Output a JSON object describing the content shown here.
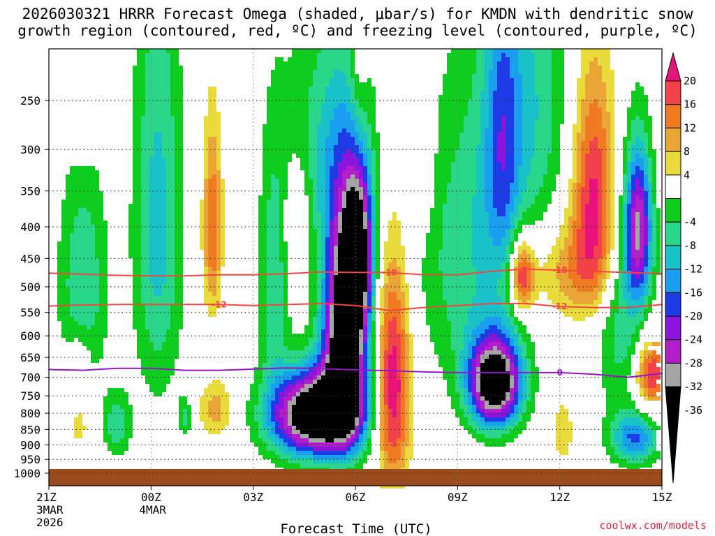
{
  "title": {
    "line1": "2026030321 HRRR Forecast Omega (shaded, μbar/s) for KMDN with dendritic snow",
    "line2": "growth region (contoured, red, ºC) and freezing level (contoured, purple, ºC)"
  },
  "credit": "coolwx.com/models",
  "chart_data": {
    "type": "heatmap",
    "xlabel": "Forecast Time (UTC)",
    "ylabel": "",
    "xlim": [
      0,
      18
    ],
    "ylim": [
      1000,
      200
    ],
    "x_ticks": [
      {
        "x": 0,
        "lines": [
          "21Z",
          "3MAR",
          "2026"
        ]
      },
      {
        "x": 3,
        "lines": [
          "00Z",
          "4MAR"
        ]
      },
      {
        "x": 6,
        "lines": [
          "03Z"
        ]
      },
      {
        "x": 9,
        "lines": [
          "06Z"
        ]
      },
      {
        "x": 12,
        "lines": [
          "09Z"
        ]
      },
      {
        "x": 15,
        "lines": [
          "12Z"
        ]
      },
      {
        "x": 18,
        "lines": [
          "15Z"
        ]
      }
    ],
    "y_ticks": [
      250,
      300,
      350,
      400,
      450,
      500,
      550,
      600,
      650,
      700,
      750,
      800,
      850,
      900,
      950,
      1000
    ],
    "colorbar": {
      "labels": [
        20,
        16,
        12,
        8,
        4,
        -4,
        -8,
        -12,
        -16,
        -20,
        -24,
        -28,
        -32,
        -36
      ],
      "levels": [
        {
          "from": 20,
          "to": 24,
          "color": "#e8137a"
        },
        {
          "from": 16,
          "to": 20,
          "color": "#f3434a"
        },
        {
          "from": 12,
          "to": 16,
          "color": "#f07a22"
        },
        {
          "from": 8,
          "to": 12,
          "color": "#e9a637"
        },
        {
          "from": 4,
          "to": 8,
          "color": "#e9db3c"
        },
        {
          "from": -4,
          "to": 4,
          "color": "#ffffff"
        },
        {
          "from": -8,
          "to": -4,
          "color": "#0fcd1e"
        },
        {
          "from": -12,
          "to": -8,
          "color": "#2ad78a"
        },
        {
          "from": -16,
          "to": -12,
          "color": "#19c2c8"
        },
        {
          "from": -20,
          "to": -16,
          "color": "#199ef0"
        },
        {
          "from": -24,
          "to": -20,
          "color": "#1e3ce6"
        },
        {
          "from": -28,
          "to": -24,
          "color": "#8c14dc"
        },
        {
          "from": -32,
          "to": -28,
          "color": "#b21ec8"
        },
        {
          "from": -36,
          "to": -32,
          "color": "#a5a5a5"
        },
        {
          "from": -40,
          "to": -36,
          "color": "#000000"
        }
      ]
    },
    "omega_centers": [
      {
        "t": 7.8,
        "p": 805,
        "amp": -48,
        "sx": 0.9,
        "sp": 90
      },
      {
        "t": 8.7,
        "p": 600,
        "amp": -48,
        "sx": 0.45,
        "sp": 175
      },
      {
        "t": 9.1,
        "p": 440,
        "amp": -30,
        "sx": 0.3,
        "sp": 90
      },
      {
        "t": 8.2,
        "p": 300,
        "amp": -11,
        "sx": 0.9,
        "sp": 100
      },
      {
        "t": 13.1,
        "p": 715,
        "amp": -46,
        "sx": 0.55,
        "sp": 85
      },
      {
        "t": 12.3,
        "p": 450,
        "amp": -11,
        "sx": 1.0,
        "sp": 170
      },
      {
        "t": 13.3,
        "p": 300,
        "amp": -12,
        "sx": 0.35,
        "sp": 120
      },
      {
        "t": 10.1,
        "p": 730,
        "amp": 24,
        "sx": 0.35,
        "sp": 210
      },
      {
        "t": 16.0,
        "p": 360,
        "amp": 22,
        "sx": 0.45,
        "sp": 110
      },
      {
        "t": 13.9,
        "p": 480,
        "amp": 22,
        "sx": 0.25,
        "sp": 45
      },
      {
        "t": 17.7,
        "p": 690,
        "amp": 22,
        "sx": 0.35,
        "sp": 70
      },
      {
        "t": 15.3,
        "p": 470,
        "amp": 10,
        "sx": 0.8,
        "sp": 60
      },
      {
        "t": 17.3,
        "p": 400,
        "amp": -30,
        "sx": 0.28,
        "sp": 80
      },
      {
        "t": 1.0,
        "p": 500,
        "amp": -12,
        "sx": 0.5,
        "sp": 150
      },
      {
        "t": 3.2,
        "p": 400,
        "amp": -14,
        "sx": 0.5,
        "sp": 220
      },
      {
        "t": 4.8,
        "p": 400,
        "amp": 16,
        "sx": 0.2,
        "sp": 100
      },
      {
        "t": 6.6,
        "p": 500,
        "amp": -11,
        "sx": 0.3,
        "sp": 160
      },
      {
        "t": 14.0,
        "p": 250,
        "amp": -12,
        "sx": 0.9,
        "sp": 120
      },
      {
        "t": 16.9,
        "p": 570,
        "amp": -11,
        "sx": 0.6,
        "sp": 150
      },
      {
        "t": 17.2,
        "p": 880,
        "amp": -20,
        "sx": 0.5,
        "sp": 60
      },
      {
        "t": 15.1,
        "p": 860,
        "amp": 8,
        "sx": 0.2,
        "sp": 70
      },
      {
        "t": 4.9,
        "p": 790,
        "amp": 10,
        "sx": 0.35,
        "sp": 60
      },
      {
        "t": 0.9,
        "p": 830,
        "amp": 6,
        "sx": 0.25,
        "sp": 70
      },
      {
        "t": 0.9,
        "p": 640,
        "amp": 6,
        "sx": 0.25,
        "sp": 50
      },
      {
        "t": 1.0,
        "p": 225,
        "amp": 6,
        "sx": 0.25,
        "sp": 60
      },
      {
        "t": 7.3,
        "p": 385,
        "amp": 7,
        "sx": 0.3,
        "sp": 60
      },
      {
        "t": 9.1,
        "p": 220,
        "amp": 7,
        "sx": 0.2,
        "sp": 60
      },
      {
        "t": 11.0,
        "p": 310,
        "amp": 7,
        "sx": 0.2,
        "sp": 60
      },
      {
        "t": 2.0,
        "p": 835,
        "amp": -11,
        "sx": 0.3,
        "sp": 70
      },
      {
        "t": 4.0,
        "p": 810,
        "amp": -9,
        "sx": 0.15,
        "sp": 40
      }
    ],
    "contours": [
      {
        "label": "-18",
        "color": "#f0463c",
        "width": 2,
        "x": [
          0,
          1,
          2,
          3,
          4,
          5,
          6,
          7,
          8,
          9,
          10,
          11,
          12,
          13,
          14,
          15,
          16,
          17,
          18
        ],
        "p": [
          475,
          477,
          479,
          480,
          480,
          478,
          478,
          476,
          473,
          474,
          474,
          478,
          478,
          472,
          468,
          470,
          472,
          474,
          476
        ],
        "label_at": [
          10,
          15
        ]
      },
      {
        "label": "-12",
        "color": "#f0463c",
        "width": 2,
        "x": [
          0,
          1,
          2,
          3,
          4,
          5,
          6,
          7,
          8,
          9,
          10,
          11,
          12,
          13,
          14,
          15,
          16,
          17,
          18
        ],
        "p": [
          537,
          535,
          534,
          534,
          534,
          534,
          536,
          534,
          532,
          536,
          546,
          540,
          536,
          532,
          532,
          538,
          540,
          540,
          534
        ],
        "label_at": [
          5,
          15
        ]
      },
      {
        "label": "0",
        "color": "#9614c8",
        "width": 2,
        "x": [
          0,
          1,
          2,
          3,
          4,
          5,
          6,
          7,
          8,
          9,
          10,
          11,
          12,
          13,
          14,
          15,
          16,
          17,
          18
        ],
        "p": [
          680,
          682,
          677,
          677,
          682,
          682,
          679,
          676,
          678,
          681,
          683,
          686,
          688,
          688,
          688,
          688,
          692,
          700,
          690
        ],
        "label_at": [
          8,
          15
        ]
      }
    ]
  }
}
